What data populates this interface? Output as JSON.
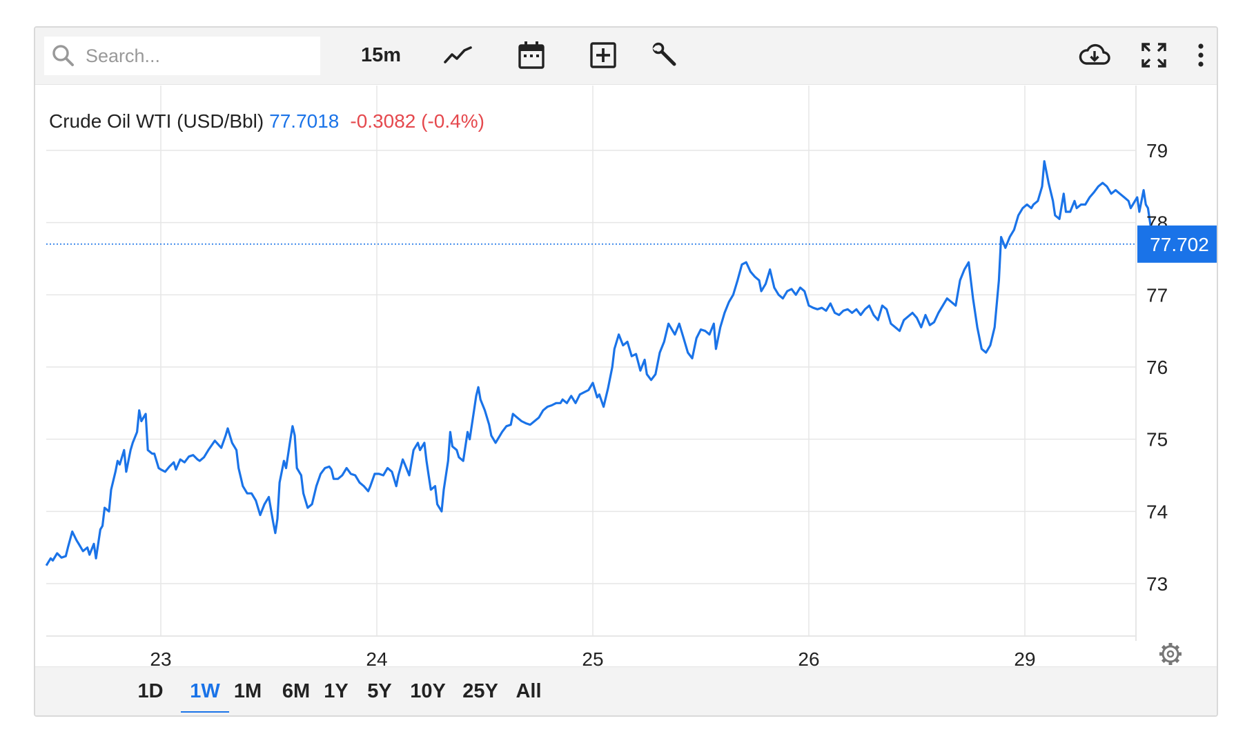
{
  "search": {
    "placeholder": "Search..."
  },
  "toolbar": {
    "interval_label": "15m",
    "icons": [
      "search-icon",
      "line-chart-icon",
      "calendar-icon",
      "add-box-icon",
      "wrench-icon",
      "cloud-download-icon",
      "fullscreen-icon",
      "more-vertical-icon",
      "settings-gear-icon"
    ]
  },
  "legend": {
    "name": "Crude Oil WTI (USD/Bbl)",
    "price": "77.7018",
    "change": "-0.3082 (-0.4%)"
  },
  "colors": {
    "line": "#1a73e8",
    "negative": "#e5484d",
    "grid": "#e6e6e6",
    "toolbar_bg": "#f3f3f3"
  },
  "price_tag": "77.702",
  "ranges": [
    {
      "label": "1D",
      "active": false
    },
    {
      "label": "1W",
      "active": true
    },
    {
      "label": "1M",
      "active": false
    },
    {
      "label": "6M",
      "active": false
    },
    {
      "label": "1Y",
      "active": false
    },
    {
      "label": "5Y",
      "active": false
    },
    {
      "label": "10Y",
      "active": false
    },
    {
      "label": "25Y",
      "active": false
    },
    {
      "label": "All",
      "active": false
    }
  ],
  "chart_data": {
    "type": "line",
    "title": "Crude Oil WTI (USD/Bbl)",
    "xlabel": "",
    "ylabel": "",
    "x_ticks": [
      {
        "label": "23",
        "t": 1.0
      },
      {
        "label": "24",
        "t": 2.0
      },
      {
        "label": "25",
        "t": 3.0
      },
      {
        "label": "26",
        "t": 4.0
      },
      {
        "label": "29",
        "t": 5.0
      }
    ],
    "y_ticks": [
      73,
      74,
      75,
      76,
      77,
      78,
      79
    ],
    "ylim": [
      72,
      80.4
    ],
    "xlim": [
      0.47,
      5.5
    ],
    "last_value": 77.702,
    "grid": true,
    "series": [
      {
        "points": [
          [
            0.47,
            73.25
          ],
          [
            0.49,
            73.35
          ],
          [
            0.5,
            73.32
          ],
          [
            0.52,
            73.42
          ],
          [
            0.54,
            73.36
          ],
          [
            0.56,
            73.38
          ],
          [
            0.57,
            73.5
          ],
          [
            0.59,
            73.72
          ],
          [
            0.61,
            73.6
          ],
          [
            0.62,
            73.55
          ],
          [
            0.64,
            73.45
          ],
          [
            0.66,
            73.5
          ],
          [
            0.67,
            73.4
          ],
          [
            0.69,
            73.55
          ],
          [
            0.7,
            73.35
          ],
          [
            0.72,
            73.75
          ],
          [
            0.73,
            73.8
          ],
          [
            0.74,
            74.05
          ],
          [
            0.76,
            74.0
          ],
          [
            0.77,
            74.3
          ],
          [
            0.79,
            74.55
          ],
          [
            0.8,
            74.7
          ],
          [
            0.81,
            74.65
          ],
          [
            0.83,
            74.85
          ],
          [
            0.84,
            74.55
          ],
          [
            0.86,
            74.85
          ],
          [
            0.87,
            74.95
          ],
          [
            0.89,
            75.1
          ],
          [
            0.9,
            75.4
          ],
          [
            0.91,
            75.25
          ],
          [
            0.93,
            75.35
          ],
          [
            0.94,
            74.85
          ],
          [
            0.96,
            74.8
          ],
          [
            0.97,
            74.8
          ],
          [
            0.99,
            74.6
          ],
          [
            1.0,
            74.58
          ],
          [
            1.02,
            74.55
          ],
          [
            1.04,
            74.62
          ],
          [
            1.06,
            74.68
          ],
          [
            1.07,
            74.58
          ],
          [
            1.09,
            74.72
          ],
          [
            1.11,
            74.68
          ],
          [
            1.13,
            74.76
          ],
          [
            1.15,
            74.78
          ],
          [
            1.17,
            74.72
          ],
          [
            1.18,
            74.7
          ],
          [
            1.2,
            74.75
          ],
          [
            1.22,
            74.85
          ],
          [
            1.25,
            74.98
          ],
          [
            1.28,
            74.88
          ],
          [
            1.3,
            75.05
          ],
          [
            1.31,
            75.15
          ],
          [
            1.33,
            74.95
          ],
          [
            1.35,
            74.85
          ],
          [
            1.36,
            74.6
          ],
          [
            1.38,
            74.35
          ],
          [
            1.4,
            74.25
          ],
          [
            1.42,
            74.25
          ],
          [
            1.44,
            74.15
          ],
          [
            1.46,
            73.95
          ],
          [
            1.48,
            74.1
          ],
          [
            1.5,
            74.2
          ],
          [
            1.52,
            73.85
          ],
          [
            1.53,
            73.7
          ],
          [
            1.54,
            73.9
          ],
          [
            1.55,
            74.4
          ],
          [
            1.57,
            74.7
          ],
          [
            1.58,
            74.6
          ],
          [
            1.6,
            75.0
          ],
          [
            1.61,
            75.18
          ],
          [
            1.62,
            75.05
          ],
          [
            1.63,
            74.6
          ],
          [
            1.65,
            74.5
          ],
          [
            1.66,
            74.25
          ],
          [
            1.68,
            74.05
          ],
          [
            1.7,
            74.1
          ],
          [
            1.72,
            74.35
          ],
          [
            1.74,
            74.52
          ],
          [
            1.76,
            74.6
          ],
          [
            1.78,
            74.62
          ],
          [
            1.79,
            74.58
          ],
          [
            1.8,
            74.45
          ],
          [
            1.82,
            74.45
          ],
          [
            1.84,
            74.5
          ],
          [
            1.86,
            74.6
          ],
          [
            1.88,
            74.52
          ],
          [
            1.9,
            74.5
          ],
          [
            1.92,
            74.4
          ],
          [
            1.94,
            74.35
          ],
          [
            1.96,
            74.28
          ],
          [
            1.97,
            74.35
          ],
          [
            1.99,
            74.52
          ],
          [
            2.01,
            74.52
          ],
          [
            2.03,
            74.5
          ],
          [
            2.05,
            74.6
          ],
          [
            2.07,
            74.55
          ],
          [
            2.09,
            74.35
          ],
          [
            2.1,
            74.5
          ],
          [
            2.12,
            74.72
          ],
          [
            2.13,
            74.65
          ],
          [
            2.15,
            74.5
          ],
          [
            2.17,
            74.85
          ],
          [
            2.19,
            74.95
          ],
          [
            2.2,
            74.85
          ],
          [
            2.22,
            74.95
          ],
          [
            2.23,
            74.7
          ],
          [
            2.24,
            74.5
          ],
          [
            2.25,
            74.3
          ],
          [
            2.27,
            74.35
          ],
          [
            2.28,
            74.1
          ],
          [
            2.3,
            74.0
          ],
          [
            2.31,
            74.3
          ],
          [
            2.33,
            74.7
          ],
          [
            2.34,
            75.1
          ],
          [
            2.35,
            74.9
          ],
          [
            2.37,
            74.85
          ],
          [
            2.38,
            74.75
          ],
          [
            2.4,
            74.7
          ],
          [
            2.42,
            75.1
          ],
          [
            2.43,
            75.0
          ],
          [
            2.45,
            75.4
          ],
          [
            2.46,
            75.6
          ],
          [
            2.47,
            75.72
          ],
          [
            2.48,
            75.55
          ],
          [
            2.5,
            75.4
          ],
          [
            2.52,
            75.2
          ],
          [
            2.53,
            75.05
          ],
          [
            2.55,
            74.95
          ],
          [
            2.57,
            75.05
          ],
          [
            2.58,
            75.1
          ],
          [
            2.6,
            75.18
          ],
          [
            2.62,
            75.2
          ],
          [
            2.63,
            75.35
          ],
          [
            2.65,
            75.3
          ],
          [
            2.67,
            75.25
          ],
          [
            2.69,
            75.22
          ],
          [
            2.71,
            75.2
          ],
          [
            2.73,
            75.25
          ],
          [
            2.75,
            75.3
          ],
          [
            2.77,
            75.4
          ],
          [
            2.79,
            75.45
          ],
          [
            2.81,
            75.47
          ],
          [
            2.83,
            75.5
          ],
          [
            2.85,
            75.5
          ],
          [
            2.86,
            75.55
          ],
          [
            2.88,
            75.5
          ],
          [
            2.9,
            75.6
          ],
          [
            2.92,
            75.5
          ],
          [
            2.94,
            75.62
          ],
          [
            2.96,
            75.65
          ],
          [
            2.98,
            75.68
          ],
          [
            3.0,
            75.78
          ],
          [
            3.02,
            75.58
          ],
          [
            3.03,
            75.62
          ],
          [
            3.05,
            75.45
          ],
          [
            3.07,
            75.7
          ],
          [
            3.09,
            76.0
          ],
          [
            3.1,
            76.25
          ],
          [
            3.12,
            76.45
          ],
          [
            3.14,
            76.3
          ],
          [
            3.16,
            76.35
          ],
          [
            3.18,
            76.15
          ],
          [
            3.2,
            76.18
          ],
          [
            3.22,
            75.95
          ],
          [
            3.24,
            76.1
          ],
          [
            3.25,
            75.9
          ],
          [
            3.27,
            75.82
          ],
          [
            3.29,
            75.9
          ],
          [
            3.31,
            76.2
          ],
          [
            3.33,
            76.35
          ],
          [
            3.35,
            76.6
          ],
          [
            3.37,
            76.5
          ],
          [
            3.38,
            76.45
          ],
          [
            3.4,
            76.6
          ],
          [
            3.42,
            76.4
          ],
          [
            3.44,
            76.2
          ],
          [
            3.46,
            76.12
          ],
          [
            3.48,
            76.4
          ],
          [
            3.5,
            76.52
          ],
          [
            3.52,
            76.5
          ],
          [
            3.54,
            76.45
          ],
          [
            3.56,
            76.6
          ],
          [
            3.57,
            76.25
          ],
          [
            3.59,
            76.55
          ],
          [
            3.61,
            76.75
          ],
          [
            3.63,
            76.9
          ],
          [
            3.65,
            77.0
          ],
          [
            3.67,
            77.2
          ],
          [
            3.69,
            77.42
          ],
          [
            3.71,
            77.45
          ],
          [
            3.73,
            77.32
          ],
          [
            3.75,
            77.25
          ],
          [
            3.77,
            77.2
          ],
          [
            3.78,
            77.05
          ],
          [
            3.8,
            77.15
          ],
          [
            3.82,
            77.35
          ],
          [
            3.84,
            77.1
          ],
          [
            3.86,
            77.0
          ],
          [
            3.88,
            76.95
          ],
          [
            3.9,
            77.05
          ],
          [
            3.92,
            77.08
          ],
          [
            3.94,
            77.0
          ],
          [
            3.96,
            77.1
          ],
          [
            3.98,
            77.05
          ],
          [
            4.0,
            76.85
          ],
          [
            4.02,
            76.82
          ],
          [
            4.04,
            76.8
          ],
          [
            4.06,
            76.82
          ],
          [
            4.08,
            76.78
          ],
          [
            4.1,
            76.88
          ],
          [
            4.12,
            76.75
          ],
          [
            4.14,
            76.72
          ],
          [
            4.16,
            76.78
          ],
          [
            4.18,
            76.8
          ],
          [
            4.2,
            76.75
          ],
          [
            4.22,
            76.8
          ],
          [
            4.24,
            76.72
          ],
          [
            4.26,
            76.8
          ],
          [
            4.28,
            76.85
          ],
          [
            4.3,
            76.72
          ],
          [
            4.32,
            76.65
          ],
          [
            4.34,
            76.85
          ],
          [
            4.36,
            76.8
          ],
          [
            4.38,
            76.6
          ],
          [
            4.4,
            76.55
          ],
          [
            4.42,
            76.5
          ],
          [
            4.44,
            76.65
          ],
          [
            4.46,
            76.7
          ],
          [
            4.48,
            76.75
          ],
          [
            4.5,
            76.68
          ],
          [
            4.52,
            76.55
          ],
          [
            4.54,
            76.72
          ],
          [
            4.56,
            76.58
          ],
          [
            4.58,
            76.62
          ],
          [
            4.6,
            76.75
          ],
          [
            4.62,
            76.85
          ],
          [
            4.64,
            76.95
          ],
          [
            4.66,
            76.9
          ],
          [
            4.68,
            76.85
          ],
          [
            4.7,
            77.2
          ],
          [
            4.72,
            77.35
          ],
          [
            4.74,
            77.45
          ],
          [
            4.76,
            76.95
          ],
          [
            4.78,
            76.55
          ],
          [
            4.8,
            76.25
          ],
          [
            4.82,
            76.2
          ],
          [
            4.84,
            76.3
          ],
          [
            4.86,
            76.55
          ],
          [
            4.88,
            77.2
          ],
          [
            4.89,
            77.8
          ],
          [
            4.91,
            77.65
          ],
          [
            4.93,
            77.8
          ],
          [
            4.95,
            77.9
          ],
          [
            4.97,
            78.1
          ],
          [
            4.99,
            78.2
          ],
          [
            5.01,
            78.25
          ],
          [
            5.03,
            78.2
          ],
          [
            5.04,
            78.25
          ],
          [
            5.06,
            78.3
          ],
          [
            5.08,
            78.5
          ],
          [
            5.09,
            78.85
          ],
          [
            5.11,
            78.55
          ],
          [
            5.13,
            78.3
          ],
          [
            5.14,
            78.1
          ],
          [
            5.16,
            78.05
          ],
          [
            5.18,
            78.4
          ],
          [
            5.19,
            78.15
          ],
          [
            5.21,
            78.15
          ],
          [
            5.23,
            78.3
          ],
          [
            5.24,
            78.2
          ],
          [
            5.26,
            78.25
          ],
          [
            5.28,
            78.25
          ],
          [
            5.3,
            78.35
          ],
          [
            5.32,
            78.42
          ],
          [
            5.34,
            78.5
          ],
          [
            5.36,
            78.55
          ],
          [
            5.38,
            78.5
          ],
          [
            5.4,
            78.4
          ],
          [
            5.42,
            78.45
          ],
          [
            5.44,
            78.4
          ],
          [
            5.46,
            78.35
          ],
          [
            5.48,
            78.3
          ],
          [
            5.49,
            78.2
          ],
          [
            5.5,
            78.25
          ],
          [
            5.52,
            78.35
          ],
          [
            5.53,
            78.15
          ],
          [
            5.55,
            78.45
          ],
          [
            5.56,
            78.25
          ],
          [
            5.57,
            78.2
          ],
          [
            5.58,
            78.0
          ],
          [
            5.59,
            77.8
          ],
          [
            5.6,
            77.702
          ],
          [
            5.62,
            77.702
          ]
        ]
      }
    ]
  }
}
